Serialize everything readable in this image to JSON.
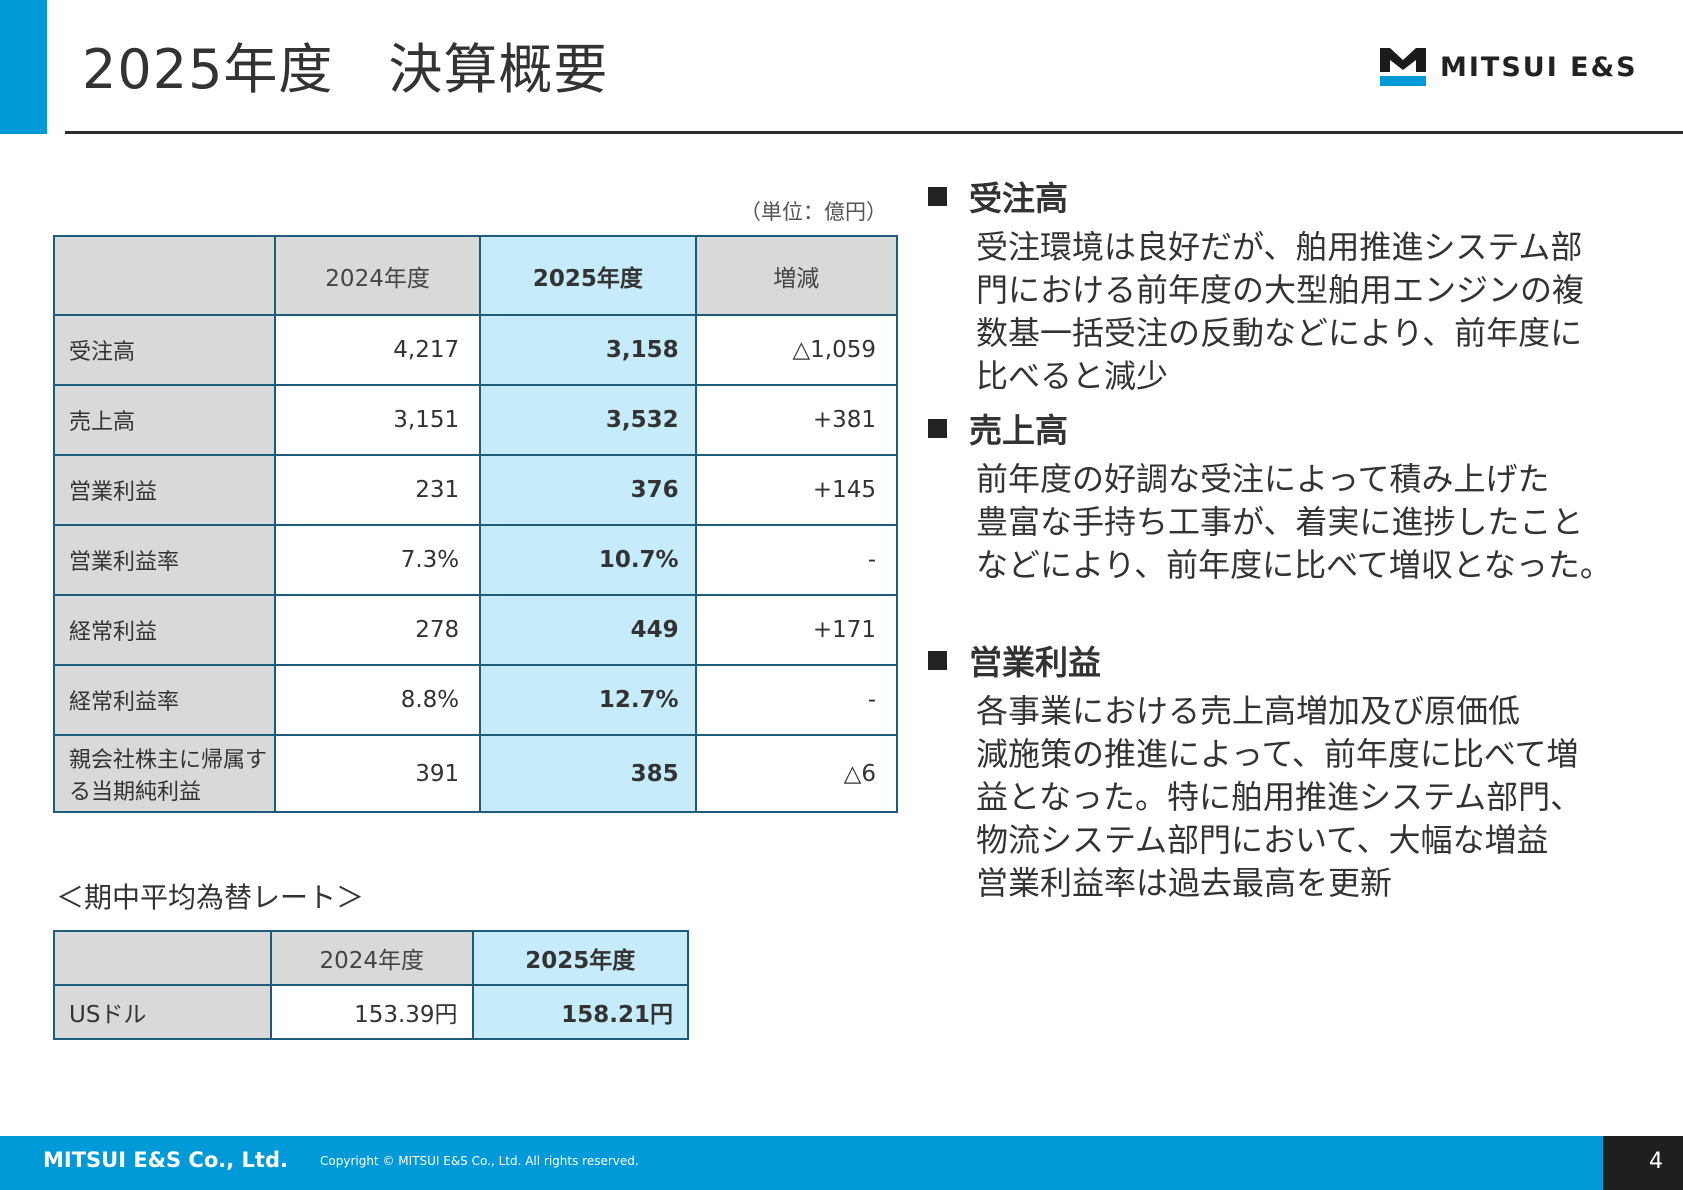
{
  "header": {
    "title": "2025年度　決算概要",
    "logo_text": "MITSUI E&S"
  },
  "colors": {
    "accent": "#009ad9",
    "highlight": "#c6ecfb",
    "label_bg": "#d9d9d9",
    "border": "#1f5c7a"
  },
  "summary_table": {
    "unit": "（単位：億円）",
    "columns": [
      "",
      "2024年度",
      "2025年度",
      "増減"
    ],
    "rows": [
      {
        "label": "受注高",
        "fy2024": "4,217",
        "fy2025": "3,158",
        "change": "△1,059"
      },
      {
        "label": "売上高",
        "fy2024": "3,151",
        "fy2025": "3,532",
        "change": "+381"
      },
      {
        "label": "営業利益",
        "fy2024": "231",
        "fy2025": "376",
        "change": "+145"
      },
      {
        "label": "営業利益率",
        "fy2024": "7.3%",
        "fy2025": "10.7%",
        "change": "-"
      },
      {
        "label": "経常利益",
        "fy2024": "278",
        "fy2025": "449",
        "change": "+171"
      },
      {
        "label": "経常利益率",
        "fy2024": "8.8%",
        "fy2025": "12.7%",
        "change": "-"
      },
      {
        "label": "親会社株主に帰属する当期純利益",
        "fy2024": "391",
        "fy2025": "385",
        "change": "△6"
      }
    ]
  },
  "fx_table": {
    "title": "＜期中平均為替レート＞",
    "columns": [
      "",
      "2024年度",
      "2025年度"
    ],
    "rows": [
      {
        "label": "USドル",
        "fy2024": "153.39円",
        "fy2025": "158.21円"
      }
    ]
  },
  "bullets": [
    {
      "head": "受注高",
      "body": "受注環境は良好だが、舶用推進システム部\n門における前年度の大型舶用エンジンの複\n数基一括受注の反動などにより、前年度に\n比べると減少"
    },
    {
      "head": "売上高",
      "body": "前年度の好調な受注によって積み上げた\n豊富な手持ち工事が、着実に進捗したこと\nなどにより、前年度に比べて増収となった。"
    },
    {
      "head": "営業利益",
      "body": "各事業における売上高増加及び原価低\n減施策の推進によって、前年度に比べて増\n益となった。特に舶用推進システム部門、\n物流システム部門において、大幅な増益\n営業利益率は過去最高を更新"
    }
  ],
  "footer": {
    "company": "MITSUI E&S Co., Ltd.",
    "copyright": "Copyright © MITSUI E&S Co., Ltd. All rights reserved.",
    "page_number": "4"
  }
}
